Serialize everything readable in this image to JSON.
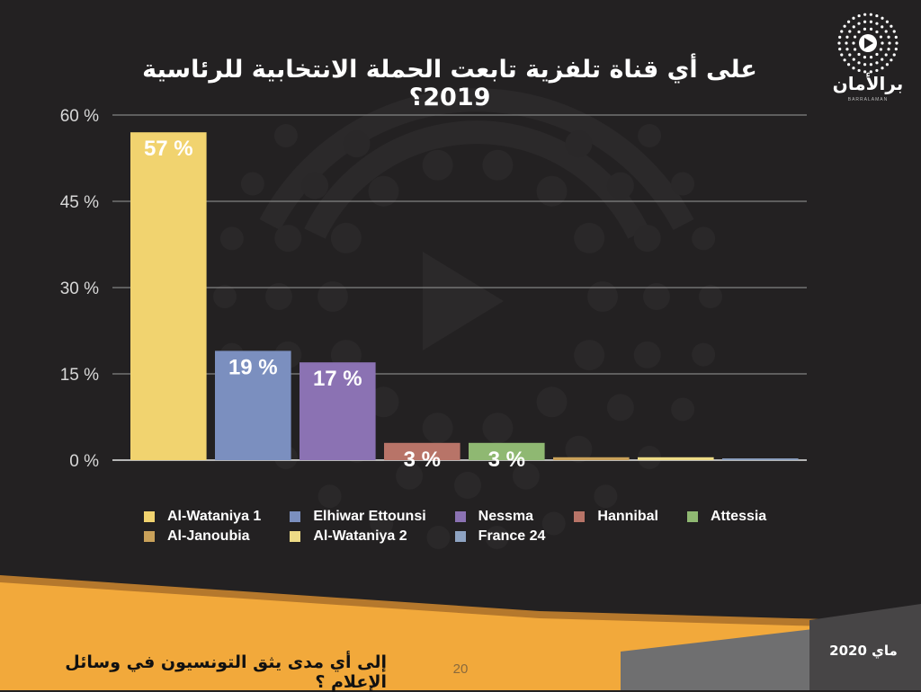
{
  "header": {
    "title": "على أي قناة تلفزية تابعت الحملة الانتخابية للرئاسية 2019؟"
  },
  "logo": {
    "icon": "play-circle-dots-icon",
    "name_ar": "برالأمان",
    "name_latin": "BARRALAMAN"
  },
  "chart_data": {
    "type": "bar",
    "categories": [
      "Al-Wataniya 1",
      "Elhiwar Ettounsi",
      "Nessma",
      "Hannibal",
      "Attessia",
      "Al-Janoubia",
      "Al-Wataniya 2",
      "France 24"
    ],
    "values": [
      57,
      19,
      17,
      3,
      3,
      0.5,
      0.5,
      0.3
    ],
    "data_labels": [
      "57 %",
      "19 %",
      "17 %",
      "3 %",
      "3 %",
      "",
      "",
      ""
    ],
    "colors": [
      "#f1d36f",
      "#7b8fbf",
      "#8b72b3",
      "#b87468",
      "#8fb872",
      "#c9a15a",
      "#eddb86",
      "#8ea3c2"
    ],
    "yticks": [
      0,
      15,
      30,
      45,
      60
    ],
    "ytick_labels": [
      "0 %",
      "15 %",
      "30 %",
      "45 %",
      "60 %"
    ],
    "ylim": [
      0,
      60
    ],
    "grid": true,
    "legend_position": "bottom"
  },
  "footer": {
    "question": "إلى أي مدى يثق التونسيون في وسائل الإعلام ؟",
    "page_number": "20",
    "date": "ماي 2020"
  }
}
